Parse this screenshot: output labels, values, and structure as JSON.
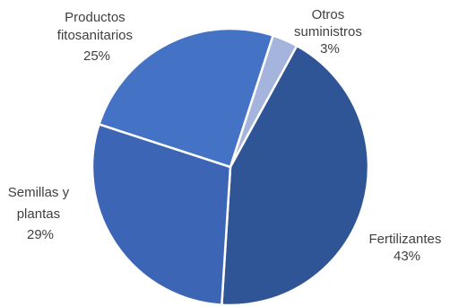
{
  "chart_data": {
    "type": "pie",
    "categories": [
      "Otros suministros",
      "Fertilizantes",
      "Semillas y plantas",
      "Productos fitosanitarios"
    ],
    "values": [
      3,
      43,
      29,
      25
    ],
    "percent_labels": [
      "3%",
      "43%",
      "29%",
      "25%"
    ],
    "label_lines": [
      [
        "Otros",
        "suministros",
        "3%"
      ],
      [
        "Fertilizantes",
        "43%"
      ],
      [
        "Semillas y",
        "plantas",
        "29%"
      ],
      [
        "Productos",
        "fitosanitarios",
        "25%"
      ]
    ],
    "colors": [
      "#A5B4DC",
      "#2F5597",
      "#3C65B5",
      "#4472C4"
    ],
    "start_angle_deg": 18,
    "direction": "clockwise",
    "legend": "none"
  }
}
